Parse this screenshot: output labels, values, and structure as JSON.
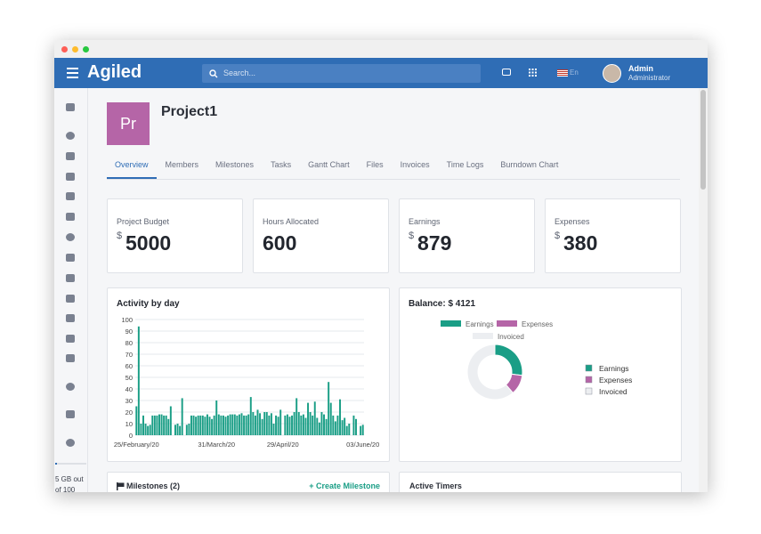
{
  "header": {
    "brand": "Agiled",
    "search_placeholder": "Search...",
    "language": "En",
    "user": {
      "name": "Admin",
      "role": "Administrator"
    }
  },
  "sidebar": {
    "storage": "5 GB out of 100"
  },
  "project": {
    "initials": "Pr",
    "name": "Project1",
    "active_tab": 0,
    "tabs": [
      "Overview",
      "Members",
      "Milestones",
      "Tasks",
      "Gantt Chart",
      "Files",
      "Invoices",
      "Time Logs",
      "Burndown Chart"
    ]
  },
  "stats": [
    {
      "label": "Project Budget",
      "currency": "$",
      "value": 5000
    },
    {
      "label": "Hours Allocated",
      "value": 600
    },
    {
      "label": "Earnings",
      "currency": "$",
      "value": 879
    },
    {
      "label": "Expenses",
      "currency": "$",
      "value": 380
    }
  ],
  "activity_chart": {
    "type": "bar",
    "title": "Activity by day",
    "color": "#1a9e86",
    "grid": true,
    "ylim": [
      0,
      100
    ],
    "yticks": [
      0,
      10,
      20,
      30,
      40,
      50,
      60,
      70,
      80,
      90,
      100
    ],
    "categories": [
      "25/February/20",
      null,
      null,
      null,
      null,
      null,
      null,
      null,
      null,
      null,
      null,
      null,
      null,
      null,
      null,
      null,
      null,
      null,
      null,
      null,
      null,
      null,
      null,
      null,
      null,
      null,
      null,
      null,
      null,
      null,
      null,
      null,
      null,
      null,
      null,
      "31/March/20",
      null,
      null,
      null,
      null,
      null,
      null,
      null,
      null,
      null,
      null,
      null,
      null,
      null,
      null,
      null,
      null,
      null,
      null,
      null,
      null,
      null,
      null,
      null,
      null,
      null,
      null,
      null,
      null,
      "29/April/20",
      null,
      null,
      null,
      null,
      null,
      null,
      null,
      null,
      null,
      null,
      null,
      null,
      null,
      null,
      null,
      null,
      null,
      null,
      null,
      null,
      null,
      null,
      null,
      null,
      null,
      null,
      null,
      null,
      null,
      null,
      null,
      null,
      null,
      null,
      "03/June/20"
    ],
    "values": [
      25,
      94,
      10,
      17,
      10,
      8,
      9,
      17,
      17,
      17,
      18,
      18,
      17,
      17,
      14,
      25,
      0,
      9,
      10,
      8,
      32,
      0,
      9,
      10,
      17,
      17,
      16,
      17,
      17,
      17,
      16,
      18,
      16,
      14,
      17,
      30,
      18,
      17,
      17,
      16,
      17,
      18,
      18,
      18,
      17,
      18,
      19,
      17,
      17,
      18,
      33,
      20,
      17,
      22,
      19,
      14,
      20,
      20,
      17,
      19,
      10,
      17,
      16,
      22,
      0,
      17,
      18,
      16,
      17,
      20,
      32,
      20,
      17,
      18,
      15,
      28,
      20,
      17,
      29,
      15,
      11,
      20,
      18,
      14,
      46,
      28,
      17,
      12,
      17,
      31,
      13,
      15,
      8,
      10,
      0,
      17,
      14,
      0,
      8,
      9
    ]
  },
  "balance_chart": {
    "type": "doughnut",
    "title": "Balance: $ 4121",
    "categories": [
      "Earnings",
      "Expenses",
      "Invoiced"
    ],
    "values": [
      879,
      380,
      2000
    ],
    "colors": [
      "#1a9e86",
      "#b565a7",
      "#eceef1"
    ]
  },
  "milestones": {
    "title": "Milestones (2)",
    "action": "+ Create Milestone"
  },
  "timers": {
    "title": "Active Timers"
  }
}
